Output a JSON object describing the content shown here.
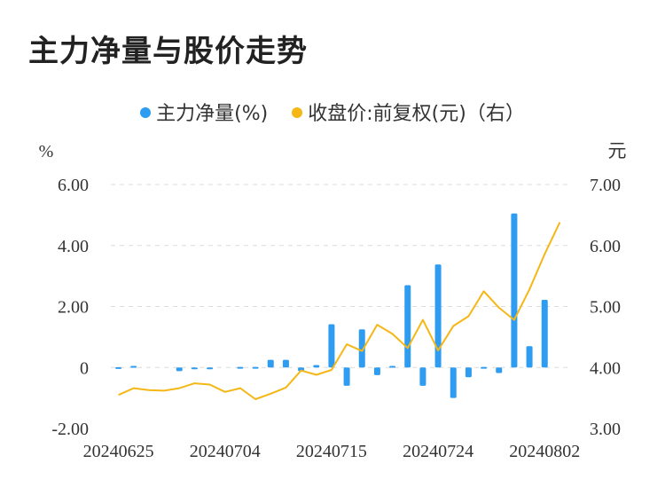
{
  "title": "主力净量与股价走势",
  "legend": {
    "bar_label": "主力净量(%)",
    "line_label": "收盘价:前复权(元)（右）"
  },
  "colors": {
    "bar": "#2e9cf0",
    "line": "#f5b716",
    "grid": "#dcdcdc"
  },
  "chart_data": {
    "type": "bar",
    "left_unit": "%",
    "right_unit": "元",
    "left_ticks": [
      "6.00",
      "4.00",
      "2.00",
      "0",
      "-2.00"
    ],
    "right_ticks": [
      "7.00",
      "6.00",
      "5.00",
      "4.00",
      "3.00"
    ],
    "left_range": [
      -2,
      6
    ],
    "right_range": [
      3,
      7
    ],
    "x_labels": [
      {
        "index": 0,
        "label": "20240625"
      },
      {
        "index": 7,
        "label": "20240704"
      },
      {
        "index": 14,
        "label": "20240715"
      },
      {
        "index": 21,
        "label": "20240724"
      },
      {
        "index": 28,
        "label": "20240802"
      }
    ],
    "series": [
      {
        "name": "主力净量(%)",
        "kind": "bar",
        "axis": "left",
        "values": [
          0.01,
          0.05,
          0.0,
          0.0,
          -0.12,
          -0.02,
          -0.02,
          0.0,
          0.02,
          0.02,
          0.25,
          0.25,
          -0.12,
          0.08,
          1.42,
          -0.6,
          1.25,
          -0.25,
          0.05,
          2.7,
          -0.6,
          3.38,
          -1.0,
          -0.32,
          0.02,
          -0.18,
          5.05,
          0.7,
          2.22
        ]
      },
      {
        "name": "收盘价:前复权(元)（右）",
        "kind": "line",
        "axis": "right",
        "values": [
          3.55,
          3.66,
          3.63,
          3.62,
          3.66,
          3.74,
          3.72,
          3.6,
          3.66,
          3.48,
          3.57,
          3.67,
          3.95,
          3.88,
          3.96,
          4.38,
          4.27,
          4.7,
          4.55,
          4.32,
          4.78,
          4.28,
          4.68,
          4.84,
          5.25,
          4.98,
          4.78,
          5.28,
          5.86,
          6.38
        ]
      }
    ]
  }
}
